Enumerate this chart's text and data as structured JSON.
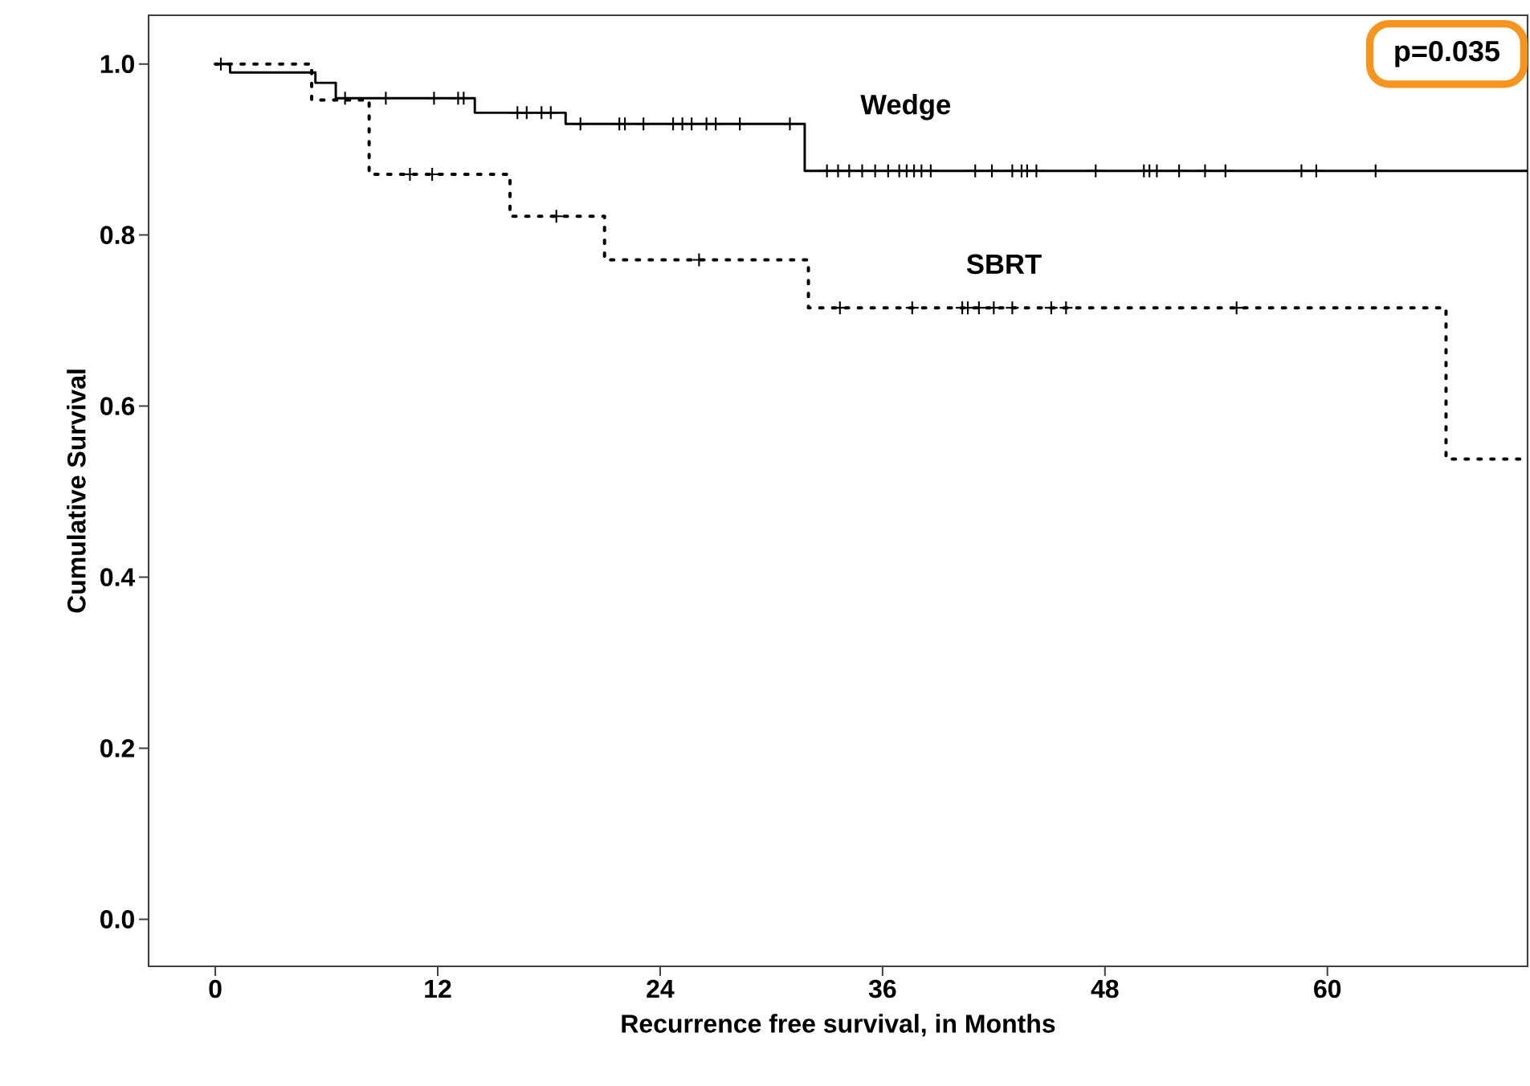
{
  "chart_data": {
    "type": "step",
    "xlabel": "Recurrence free survival, in Months",
    "ylabel": "Cumulative Survival",
    "annotations": [
      "p=0.035"
    ],
    "xlim": [
      -3.6,
      70.8
    ],
    "ylim": [
      -0.055,
      1.057
    ],
    "xticks": [
      0,
      12,
      24,
      36,
      48,
      60
    ],
    "yticks": [
      {
        "value": 0,
        "label": "0.0"
      },
      {
        "value": 0.2,
        "label": "0.2"
      },
      {
        "value": 0.4,
        "label": "0.4"
      },
      {
        "value": 0.6,
        "label": "0.6"
      },
      {
        "value": 0.8,
        "label": "0.8"
      },
      {
        "value": 1,
        "label": "1.0"
      }
    ],
    "grid": false,
    "legend": false,
    "series": [
      {
        "name": "Wedge",
        "color": "#000000",
        "line_style": "solid",
        "x": [
          0,
          0.8,
          5.4,
          6.5,
          14.0,
          18.9,
          31.8,
          70.8
        ],
        "values": [
          1.0,
          0.99,
          0.978,
          0.96,
          0.943,
          0.93,
          0.875,
          0.875
        ]
      },
      {
        "name": "SBRT",
        "color": "#000000",
        "line_style": "dotted",
        "x": [
          0,
          5.2,
          8.3,
          15.9,
          21.0,
          32.0,
          66.4,
          70.8
        ],
        "values": [
          1.0,
          0.958,
          0.871,
          0.822,
          0.771,
          0.715,
          0.538,
          0.538
        ]
      },
      {
        "type": "scatter",
        "marker": "cross",
        "color": "#000000",
        "x": [
          0.3,
          7.0,
          9.2,
          11.8,
          13.1,
          13.4,
          16.3,
          16.8,
          17.6,
          18.1,
          19.7,
          21.8,
          22.1,
          23.1,
          24.7,
          25.2,
          25.7,
          26.5,
          27.0,
          28.3,
          31.0,
          33.0,
          33.6,
          34.2,
          34.9,
          35.6,
          36.3,
          36.9,
          37.3,
          37.7,
          38.1,
          38.6,
          41.0,
          41.9,
          43.0,
          43.5,
          43.8,
          44.3,
          47.5,
          50.1,
          50.4,
          50.8,
          52.0,
          53.4,
          54.5,
          58.6,
          59.4,
          62.6
        ],
        "values": [
          1.0,
          0.96,
          0.96,
          0.96,
          0.96,
          0.96,
          0.943,
          0.943,
          0.943,
          0.943,
          0.93,
          0.93,
          0.93,
          0.93,
          0.93,
          0.93,
          0.93,
          0.93,
          0.93,
          0.93,
          0.93,
          0.875,
          0.875,
          0.875,
          0.875,
          0.875,
          0.875,
          0.875,
          0.875,
          0.875,
          0.875,
          0.875,
          0.875,
          0.875,
          0.875,
          0.875,
          0.875,
          0.875,
          0.875,
          0.875,
          0.875,
          0.875,
          0.875,
          0.875,
          0.875,
          0.875,
          0.875,
          0.875
        ]
      },
      {
        "type": "scatter",
        "marker": "cross",
        "color": "#000000",
        "x": [
          10.5,
          11.7,
          18.4,
          26.1,
          33.7,
          37.6,
          40.3,
          40.6,
          41.2,
          42.0,
          43.0,
          45.1,
          45.9,
          55.1
        ],
        "values": [
          0.871,
          0.871,
          0.822,
          0.771,
          0.715,
          0.715,
          0.715,
          0.715,
          0.715,
          0.715,
          0.715,
          0.715,
          0.715,
          0.715
        ]
      }
    ]
  }
}
